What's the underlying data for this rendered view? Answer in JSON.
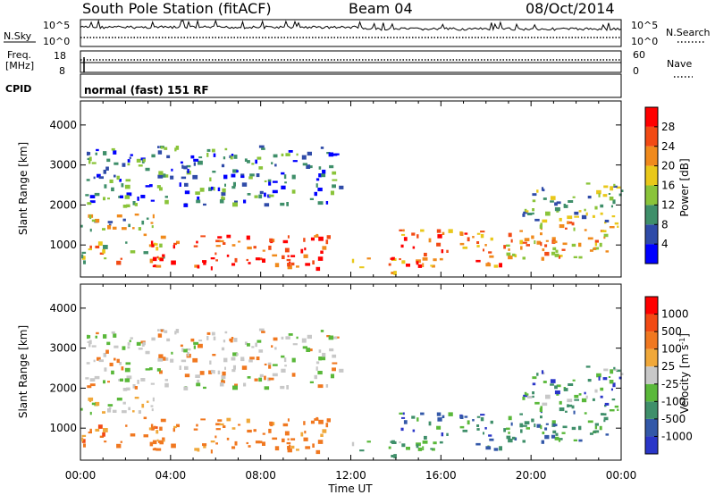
{
  "header": {
    "station": "South Pole Station (fitACF)",
    "beam": "Beam 04",
    "date": "08/Oct/2014"
  },
  "top_panels": {
    "nsky_label": "N.Sky",
    "nsky_ticks": [
      "10^5",
      "10^0"
    ],
    "nsearch_label": "N.Search",
    "freq_label_line1": "Freq.",
    "freq_label_line2": "[MHz]",
    "freq_ticks": [
      "18",
      "8"
    ],
    "nave_label": "Nave",
    "nave_ticks": [
      "60",
      "0"
    ],
    "cpid_label": "CPID",
    "cpid_text": "normal (fast) 151 RF"
  },
  "chart_data": [
    {
      "type": "heatmap",
      "name": "Power",
      "ylabel": "Slant Range [km]",
      "xlabel": "",
      "yticks": [
        1000,
        2000,
        3000,
        4000
      ],
      "ylim": [
        200,
        4600
      ],
      "xlim_hours": [
        0,
        24
      ],
      "colorbar": {
        "label": "Power [dB]",
        "ticks": [
          "4",
          "8",
          "12",
          "16",
          "20",
          "24",
          "28"
        ],
        "colors": [
          "#0000ff",
          "#2f4ba8",
          "#3f8f6a",
          "#8ac43a",
          "#e9c81a",
          "#f08a1c",
          "#f24a14",
          "#ff0000"
        ]
      }
    },
    {
      "type": "heatmap",
      "name": "Velocity",
      "ylabel": "Slant Range [km]",
      "xlabel": "Time UT",
      "yticks": [
        1000,
        2000,
        3000,
        4000
      ],
      "ylim": [
        200,
        4600
      ],
      "xlim_hours": [
        0,
        24
      ],
      "xticks": [
        "00:00",
        "04:00",
        "08:00",
        "12:00",
        "16:00",
        "20:00",
        "00:00"
      ],
      "colorbar": {
        "label": "Velocity [m s",
        "label_sup": "-1",
        "label_close": "]",
        "ticks": [
          "1000",
          "500",
          "100",
          "25",
          "-25",
          "-100",
          "-500",
          "-1000"
        ],
        "colors": [
          "#2a36c8",
          "#3358a8",
          "#3f8f6a",
          "#5ab83a",
          "#c8c8c8",
          "#f0a83a",
          "#f07820",
          "#f24a14",
          "#ff0000"
        ]
      }
    }
  ]
}
